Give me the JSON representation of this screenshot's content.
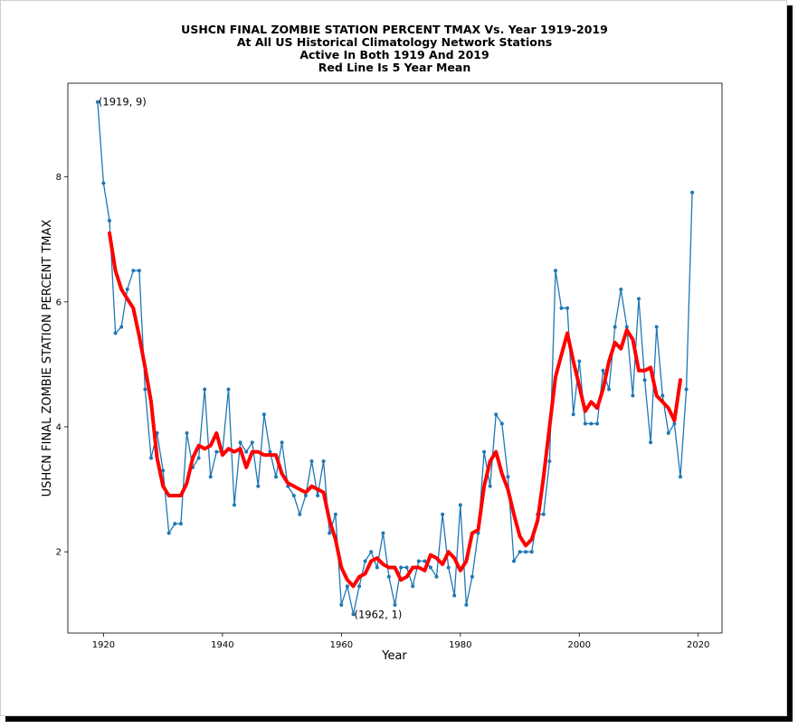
{
  "chart_data": {
    "type": "line",
    "title_lines": [
      "USHCN FINAL ZOMBIE STATION PERCENT TMAX Vs. Year 1919-2019",
      "At All US Historical Climatology Network Stations",
      "Active In Both 1919 And 2019",
      "Red Line Is 5 Year Mean"
    ],
    "xlabel": "Year",
    "ylabel": "USHCN FINAL ZOMBIE STATION PERCENT TMAX",
    "xlim": [
      1914,
      2024
    ],
    "ylim": [
      0.7,
      9.5
    ],
    "xticks": [
      1920,
      1940,
      1960,
      1980,
      2000,
      2020
    ],
    "yticks": [
      2,
      4,
      6,
      8
    ],
    "grid": false,
    "colors": {
      "series": "#1f77b4",
      "mean": "#ff0000"
    },
    "series": [
      {
        "style": "line-with-markers",
        "x": [
          1919,
          1920,
          1921,
          1922,
          1923,
          1924,
          1925,
          1926,
          1927,
          1928,
          1929,
          1930,
          1931,
          1932,
          1933,
          1934,
          1935,
          1936,
          1937,
          1938,
          1939,
          1940,
          1941,
          1942,
          1943,
          1944,
          1945,
          1946,
          1947,
          1948,
          1949,
          1950,
          1951,
          1952,
          1953,
          1954,
          1955,
          1956,
          1957,
          1958,
          1959,
          1960,
          1961,
          1962,
          1963,
          1964,
          1965,
          1966,
          1967,
          1968,
          1969,
          1970,
          1971,
          1972,
          1973,
          1974,
          1975,
          1976,
          1977,
          1978,
          1979,
          1980,
          1981,
          1982,
          1983,
          1984,
          1985,
          1986,
          1987,
          1988,
          1989,
          1990,
          1991,
          1992,
          1993,
          1994,
          1995,
          1996,
          1997,
          1998,
          1999,
          2000,
          2001,
          2002,
          2003,
          2004,
          2005,
          2006,
          2007,
          2008,
          2009,
          2010,
          2011,
          2012,
          2013,
          2014,
          2015,
          2016,
          2017,
          2018,
          2019
        ],
        "values": [
          9.2,
          7.9,
          7.3,
          5.5,
          5.6,
          6.2,
          6.5,
          6.5,
          4.6,
          3.5,
          3.9,
          3.3,
          2.3,
          2.45,
          2.45,
          3.9,
          3.35,
          3.5,
          4.6,
          3.2,
          3.6,
          3.6,
          4.6,
          2.75,
          3.75,
          3.6,
          3.75,
          3.05,
          4.2,
          3.6,
          3.2,
          3.75,
          3.05,
          2.9,
          2.6,
          2.9,
          3.45,
          2.9,
          3.45,
          2.3,
          2.6,
          1.15,
          1.45,
          1.0,
          1.45,
          1.85,
          2.0,
          1.75,
          2.3,
          1.6,
          1.15,
          1.75,
          1.75,
          1.45,
          1.85,
          1.85,
          1.75,
          1.6,
          2.6,
          1.75,
          1.3,
          2.75,
          1.15,
          1.6,
          2.3,
          3.6,
          3.05,
          4.2,
          4.05,
          3.2,
          1.85,
          2.0,
          2.0,
          2.0,
          2.6,
          2.6,
          3.45,
          6.5,
          5.9,
          5.9,
          4.2,
          5.05,
          4.05,
          4.05,
          4.05,
          4.9,
          4.6,
          5.6,
          6.2,
          5.6,
          4.5,
          6.05,
          4.75,
          3.75,
          5.6,
          4.5,
          3.9,
          4.05,
          3.2,
          4.6,
          7.75
        ]
      },
      {
        "style": "5-year-mean",
        "x": [
          1921,
          1922,
          1923,
          1924,
          1925,
          1926,
          1927,
          1928,
          1929,
          1930,
          1931,
          1932,
          1933,
          1934,
          1935,
          1936,
          1937,
          1938,
          1939,
          1940,
          1941,
          1942,
          1943,
          1944,
          1945,
          1946,
          1947,
          1948,
          1949,
          1950,
          1951,
          1952,
          1953,
          1954,
          1955,
          1956,
          1957,
          1958,
          1959,
          1960,
          1961,
          1962,
          1963,
          1964,
          1965,
          1966,
          1967,
          1968,
          1969,
          1970,
          1971,
          1972,
          1973,
          1974,
          1975,
          1976,
          1977,
          1978,
          1979,
          1980,
          1981,
          1982,
          1983,
          1984,
          1985,
          1986,
          1987,
          1988,
          1989,
          1990,
          1991,
          1992,
          1993,
          1994,
          1995,
          1996,
          1997,
          1998,
          1999,
          2000,
          2001,
          2002,
          2003,
          2004,
          2005,
          2006,
          2007,
          2008,
          2009,
          2010,
          2011,
          2012,
          2013,
          2014,
          2015,
          2016,
          2017
        ],
        "values": [
          7.1,
          6.5,
          6.2,
          6.05,
          5.9,
          5.45,
          4.95,
          4.4,
          3.5,
          3.05,
          2.9,
          2.9,
          2.9,
          3.1,
          3.5,
          3.7,
          3.65,
          3.7,
          3.9,
          3.55,
          3.65,
          3.6,
          3.65,
          3.35,
          3.6,
          3.6,
          3.55,
          3.55,
          3.55,
          3.25,
          3.1,
          3.05,
          3.0,
          2.95,
          3.05,
          3.0,
          2.95,
          2.5,
          2.2,
          1.75,
          1.55,
          1.45,
          1.6,
          1.65,
          1.85,
          1.9,
          1.8,
          1.75,
          1.75,
          1.55,
          1.6,
          1.75,
          1.75,
          1.7,
          1.95,
          1.9,
          1.8,
          2.0,
          1.9,
          1.7,
          1.85,
          2.3,
          2.35,
          3.05,
          3.45,
          3.6,
          3.25,
          3.0,
          2.6,
          2.25,
          2.1,
          2.2,
          2.5,
          3.2,
          4.0,
          4.8,
          5.15,
          5.5,
          5.05,
          4.65,
          4.25,
          4.4,
          4.3,
          4.6,
          5.05,
          5.35,
          5.25,
          5.55,
          5.4,
          4.9,
          4.9,
          4.95,
          4.5,
          4.4,
          4.3,
          4.1,
          4.75
        ]
      }
    ],
    "annotations": [
      {
        "text": "(1919, 9)",
        "x": 1919,
        "y": 9.2
      },
      {
        "text": "(1962, 1)",
        "x": 1962,
        "y": 1.0
      }
    ]
  }
}
